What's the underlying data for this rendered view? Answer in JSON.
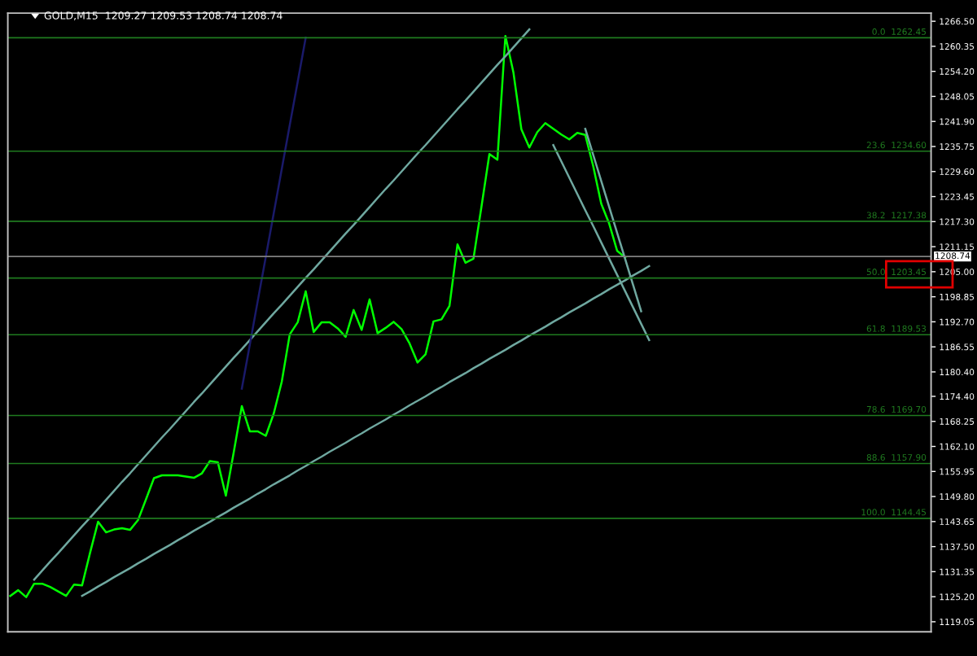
{
  "chart_data": {
    "type": "line",
    "title": "GOLD,M15  1209.27 1209.53 1208.74 1208.74",
    "categories": [
      null,
      null,
      null,
      null,
      null,
      null,
      null,
      null,
      null,
      null,
      null,
      null,
      null,
      null,
      null,
      null,
      null,
      null,
      null,
      null,
      null,
      null,
      null,
      null,
      null,
      null,
      null,
      null,
      null,
      null,
      null,
      null,
      null,
      null,
      null,
      null,
      null,
      null,
      null,
      null,
      null,
      null,
      null,
      null,
      null,
      null,
      null,
      null,
      null,
      null,
      null,
      null,
      null,
      null,
      null,
      null,
      null,
      null,
      null,
      null,
      null,
      null,
      null,
      null,
      null,
      null,
      null,
      null,
      null,
      null,
      null,
      null,
      null,
      null,
      null,
      null,
      null,
      null,
      null,
      null,
      null,
      null,
      null,
      null,
      null,
      null,
      null,
      null,
      null,
      null,
      null,
      null,
      null,
      null,
      null,
      null,
      null,
      null,
      null,
      null,
      null,
      null,
      null,
      null,
      null,
      null,
      null,
      null,
      null,
      null,
      null,
      null,
      null,
      null,
      null,
      null
    ],
    "ylim": [
      1116.6,
      1268.5
    ],
    "tick_labels": "y",
    "grid": false,
    "marker": "none",
    "line_style": "solid",
    "yticks": [
      {
        "value": 1266.5,
        "label": "1266.50"
      },
      {
        "value": 1260.35,
        "label": "1260.35"
      },
      {
        "value": 1254.2,
        "label": "1254.20"
      },
      {
        "value": 1248.05,
        "label": "1248.05"
      },
      {
        "value": 1241.9,
        "label": "1241.90"
      },
      {
        "value": 1235.75,
        "label": "1235.75"
      },
      {
        "value": 1229.6,
        "label": "1229.60"
      },
      {
        "value": 1223.45,
        "label": "1223.45"
      },
      {
        "value": 1217.3,
        "label": "1217.30"
      },
      {
        "value": 1211.15,
        "label": "1211.15"
      },
      {
        "value": 1205.0,
        "label": "1205.00"
      },
      {
        "value": 1198.85,
        "label": "1198.85"
      },
      {
        "value": 1192.7,
        "label": "1192.70"
      },
      {
        "value": 1186.55,
        "label": "1186.55"
      },
      {
        "value": 1180.4,
        "label": "1180.40"
      },
      {
        "value": 1174.4,
        "label": "1174.40"
      },
      {
        "value": 1168.25,
        "label": "1168.25"
      },
      {
        "value": 1162.1,
        "label": "1162.10"
      },
      {
        "value": 1155.95,
        "label": "1155.95"
      },
      {
        "value": 1149.8,
        "label": "1149.80"
      },
      {
        "value": 1143.65,
        "label": "1143.65"
      },
      {
        "value": 1137.5,
        "label": "1137.50"
      },
      {
        "value": 1131.35,
        "label": "1131.35"
      },
      {
        "value": 1125.2,
        "label": "1125.20"
      },
      {
        "value": 1119.05,
        "label": "1119.05"
      }
    ],
    "ref_lines": [
      {
        "axis": "y",
        "value": 1208.74,
        "label": "1208.74",
        "color": "#808080"
      },
      {
        "axis": "y",
        "value": 1262.45,
        "label": "0.0  1262.45",
        "color": "#1f7a1f"
      },
      {
        "axis": "y",
        "value": 1234.6,
        "label": "23.6  1234.60",
        "color": "#1f7a1f"
      },
      {
        "axis": "y",
        "value": 1217.38,
        "label": "38.2  1217.38",
        "color": "#1f7a1f"
      },
      {
        "axis": "y",
        "value": 1203.45,
        "label": "50.0  1203.45",
        "color": "#1f7a1f"
      },
      {
        "axis": "y",
        "value": 1189.53,
        "label": "61.8  1189.53",
        "color": "#1f7a1f"
      },
      {
        "axis": "y",
        "value": 1169.7,
        "label": "78.6  1169.70",
        "color": "#1f7a1f"
      },
      {
        "axis": "y",
        "value": 1157.9,
        "label": "88.6  1157.90",
        "color": "#1f7a1f"
      },
      {
        "axis": "y",
        "value": 1144.45,
        "label": "100.0  1144.45",
        "color": "#1f7a1f"
      }
    ],
    "series": [
      {
        "color": "#00ff00",
        "values": [
          1125.4,
          1126.8,
          1125.1,
          1128.4,
          1128.4,
          1127.6,
          1126.5,
          1125.4,
          1128.2,
          1128.0,
          1136.0,
          1143.6,
          1141.0,
          1141.7,
          1142.0,
          1141.6,
          1144.0,
          1149.1,
          1154.3,
          1155.0,
          1155.0,
          1155.0,
          1154.7,
          1154.4,
          1155.5,
          1158.5,
          1158.2,
          1150.0,
          1160.8,
          1172.0,
          1165.8,
          1165.8,
          1164.7,
          1170.2,
          1178.0,
          1189.6,
          1192.6,
          1200.2,
          1190.2,
          1192.6,
          1192.6,
          1191.1,
          1189.0,
          1195.6,
          1190.7,
          1198.2,
          1189.9,
          1191.2,
          1192.7,
          1190.9,
          1187.4,
          1182.7,
          1184.7,
          1192.8,
          1193.3,
          1196.6,
          1211.7,
          1207.2,
          1208.2,
          1220.9,
          1233.9,
          1232.5,
          1262.9,
          1254.0,
          1240.0,
          1235.5,
          1239.3,
          1241.5,
          1240.1,
          1238.7,
          1237.5,
          1239.1,
          1238.6,
          1230.9,
          1221.7,
          1216.8,
          1210.1,
          1208.5,
          null,
          null,
          null,
          null,
          null,
          null,
          null,
          null,
          null,
          null,
          null,
          null,
          null,
          null,
          null,
          null,
          null,
          null,
          null,
          null,
          null,
          null,
          null,
          null,
          null,
          null,
          null,
          null,
          null,
          null,
          null,
          null,
          null,
          null,
          null,
          null,
          null,
          null
        ]
      },
      {
        "color": "#6fa8a0",
        "values": [
          null,
          null,
          null,
          1129.4,
          1131.6,
          1133.8,
          1135.9,
          1138.1,
          1140.3,
          1142.5,
          1144.6,
          1146.8,
          1149.0,
          1151.2,
          1153.4,
          1155.5,
          1157.7,
          1159.9,
          1162.1,
          1164.3,
          1166.4,
          1168.6,
          1170.8,
          1173.0,
          1175.1,
          1177.3,
          1179.5,
          1181.7,
          1183.9,
          1186.0,
          1188.2,
          1190.4,
          1192.6,
          1194.8,
          1196.9,
          1199.1,
          1201.3,
          1203.5,
          1205.6,
          1207.8,
          1210.0,
          1212.2,
          1214.4,
          1216.5,
          1218.7,
          1220.9,
          1223.1,
          1225.3,
          1227.4,
          1229.6,
          1231.8,
          1234.0,
          1236.1,
          1238.3,
          1240.5,
          1242.7,
          1244.9,
          1247.0,
          1249.2,
          1251.4,
          1253.6,
          1255.8,
          1257.9,
          1260.1,
          1262.3,
          1264.5,
          null,
          null,
          null,
          null,
          null,
          null,
          null,
          null,
          null,
          null,
          null,
          null,
          null,
          null,
          null,
          null,
          null,
          null,
          null,
          null,
          null,
          null,
          null,
          null,
          null,
          null,
          null,
          null,
          null,
          null,
          null,
          null,
          null,
          null,
          null,
          null,
          null,
          null,
          null,
          null,
          null,
          null,
          null,
          null,
          null,
          null,
          null,
          null,
          null,
          null
        ]
      },
      {
        "color": "#6fa8a0",
        "values": [
          null,
          null,
          null,
          null,
          null,
          null,
          null,
          null,
          null,
          1125.4,
          1126.5,
          1127.7,
          1128.8,
          1130.0,
          1131.1,
          1132.2,
          1133.4,
          1134.5,
          1135.7,
          1136.8,
          1137.9,
          1139.1,
          1140.2,
          1141.4,
          1142.5,
          1143.6,
          1144.8,
          1145.9,
          1147.1,
          1148.2,
          1149.3,
          1150.5,
          1151.6,
          1152.8,
          1153.9,
          1155.0,
          1156.2,
          1157.3,
          1158.5,
          1159.6,
          1160.8,
          1161.9,
          1163.0,
          1164.2,
          1165.3,
          1166.5,
          1167.6,
          1168.7,
          1169.9,
          1171.0,
          1172.2,
          1173.3,
          1174.4,
          1175.6,
          1176.7,
          1177.9,
          1179.0,
          1180.1,
          1181.3,
          1182.4,
          1183.6,
          1184.7,
          1185.8,
          1187.0,
          1188.1,
          1189.3,
          1190.4,
          1191.5,
          1192.7,
          1193.8,
          1195.0,
          1196.1,
          1197.2,
          1198.4,
          1199.5,
          1200.7,
          1201.8,
          1202.9,
          1204.1,
          1205.2,
          1206.4,
          null,
          null,
          null,
          null,
          null,
          null,
          null,
          null,
          null,
          null,
          null,
          null,
          null,
          null,
          null,
          null,
          null,
          null,
          null,
          null,
          null,
          null,
          null,
          null,
          null,
          null,
          null,
          null,
          null,
          null,
          null,
          null,
          null,
          null,
          null
        ]
      },
      {
        "color": "#6fa8a0",
        "values": [
          null,
          null,
          null,
          null,
          null,
          null,
          null,
          null,
          null,
          null,
          null,
          null,
          null,
          null,
          null,
          null,
          null,
          null,
          null,
          null,
          null,
          null,
          null,
          null,
          null,
          null,
          null,
          null,
          null,
          null,
          null,
          null,
          null,
          null,
          null,
          null,
          null,
          null,
          null,
          null,
          null,
          null,
          null,
          null,
          null,
          null,
          null,
          null,
          null,
          null,
          null,
          null,
          null,
          null,
          null,
          null,
          null,
          null,
          null,
          null,
          null,
          null,
          null,
          null,
          null,
          null,
          null,
          null,
          null,
          null,
          null,
          null,
          1240.1,
          1233.7,
          1227.3,
          1220.9,
          1214.5,
          1208.1,
          1201.7,
          1195.3,
          null,
          null,
          null,
          null,
          null,
          null,
          null,
          null,
          null,
          null,
          null,
          null,
          null,
          null,
          null,
          null,
          null,
          null,
          null,
          null,
          null,
          null,
          null,
          null,
          null,
          null,
          null,
          null,
          null,
          null,
          null,
          null,
          null,
          null,
          null,
          null
        ]
      },
      {
        "color": "#6fa8a0",
        "values": [
          null,
          null,
          null,
          null,
          null,
          null,
          null,
          null,
          null,
          null,
          null,
          null,
          null,
          null,
          null,
          null,
          null,
          null,
          null,
          null,
          null,
          null,
          null,
          null,
          null,
          null,
          null,
          null,
          null,
          null,
          null,
          null,
          null,
          null,
          null,
          null,
          null,
          null,
          null,
          null,
          null,
          null,
          null,
          null,
          null,
          null,
          null,
          null,
          null,
          null,
          null,
          null,
          null,
          null,
          null,
          null,
          null,
          null,
          null,
          null,
          null,
          null,
          null,
          null,
          null,
          null,
          null,
          null,
          1236.1,
          1232.1,
          1228.1,
          1224.1,
          1220.1,
          1216.2,
          1212.2,
          1208.2,
          1204.2,
          1200.2,
          1196.2,
          1192.2,
          1188.2,
          null,
          null,
          null,
          null,
          null,
          null,
          null,
          null,
          null,
          null,
          null,
          null,
          null,
          null,
          null,
          null,
          null,
          null,
          null,
          null,
          null,
          null,
          null,
          null,
          null,
          null,
          null,
          null,
          null,
          null,
          null,
          null,
          null,
          null,
          null
        ]
      },
      {
        "color": "#1a1a6a",
        "values": [
          null,
          null,
          null,
          null,
          null,
          null,
          null,
          null,
          null,
          null,
          null,
          null,
          null,
          null,
          null,
          null,
          null,
          null,
          null,
          null,
          null,
          null,
          null,
          null,
          null,
          null,
          null,
          null,
          null,
          1176.3,
          1187.1,
          1197.9,
          1208.6,
          1219.4,
          1230.2,
          1241.0,
          1251.7,
          1262.5,
          null,
          null,
          null,
          null,
          null,
          null,
          null,
          null,
          null,
          null,
          null,
          null,
          null,
          null,
          null,
          null,
          null,
          null,
          null,
          null,
          null,
          null,
          null,
          null,
          null,
          null,
          null,
          null,
          null,
          null,
          null,
          null,
          null,
          null,
          null,
          null,
          null,
          null,
          null,
          null,
          null,
          null,
          null,
          null,
          null,
          null,
          null,
          null,
          null,
          null,
          null,
          null,
          null,
          null,
          null,
          null,
          null,
          null,
          null,
          null,
          null,
          null,
          null,
          null,
          null,
          null,
          null,
          null,
          null,
          null,
          null,
          null,
          null,
          null,
          null,
          null,
          null,
          null
        ]
      }
    ]
  }
}
